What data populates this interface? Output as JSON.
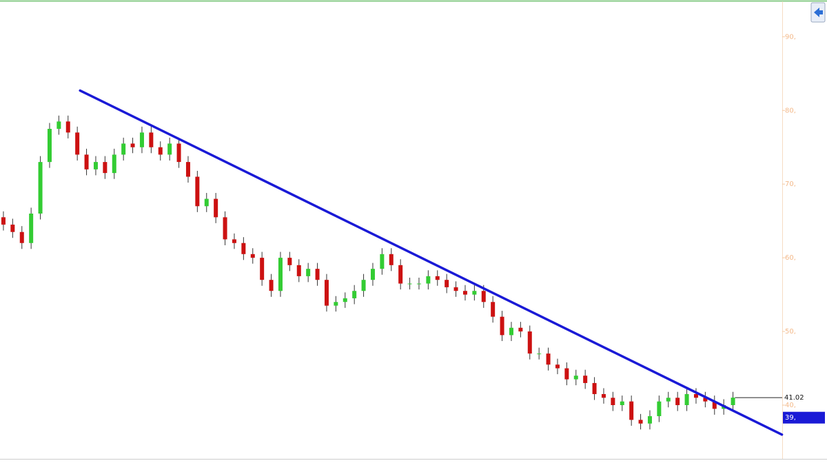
{
  "chart_data": {
    "type": "candlestick",
    "up_color": "#33cc33",
    "down_color": "#cc1111",
    "wick_color": "#333333",
    "open": [
      65.5,
      64.5,
      63.5,
      62,
      66,
      73,
      77.5,
      78.5,
      77,
      74,
      72,
      73,
      71.5,
      74,
      75.5,
      75,
      77,
      75,
      74,
      75.5,
      73,
      71,
      67,
      68,
      65.5,
      62.5,
      62,
      60.5,
      60,
      57,
      55.5,
      60,
      59,
      57.5,
      58.5,
      57,
      53.5,
      54,
      54.5,
      55.5,
      57,
      58.5,
      60.5,
      59,
      56.5,
      56.5,
      56.5,
      57.5,
      57,
      56,
      55.5,
      55,
      55.5,
      54,
      52,
      49.5,
      50.5,
      50,
      47,
      47,
      45.5,
      45,
      43.5,
      44,
      43,
      41.5,
      41,
      40,
      40.5,
      38,
      37.5,
      38.5,
      40.5,
      41,
      40,
      41.5,
      41,
      40.5,
      39.5,
      40
    ],
    "high": [
      66.3,
      65.3,
      64.3,
      66.8,
      73.8,
      78.3,
      79.3,
      79.3,
      77.8,
      74.8,
      73.8,
      73.8,
      74.8,
      76.3,
      76.3,
      77.8,
      77.8,
      75.8,
      76.3,
      76.3,
      73.8,
      71.8,
      68.8,
      68.8,
      66.3,
      63.3,
      62.8,
      61.3,
      60.8,
      57.8,
      60.8,
      60.8,
      59.8,
      59.3,
      59.3,
      57.8,
      54.8,
      55.3,
      56.3,
      57.8,
      59.3,
      61.3,
      61.3,
      59.8,
      57.3,
      57.3,
      58.3,
      58.3,
      57.8,
      56.8,
      56.3,
      56.3,
      56.3,
      54.8,
      52.8,
      51.3,
      51.3,
      50.8,
      47.8,
      47.8,
      46.3,
      45.8,
      44.8,
      44.8,
      43.8,
      42.3,
      41.8,
      41.3,
      41.3,
      38.8,
      39.3,
      41.3,
      41.8,
      41.8,
      42.3,
      42.3,
      41.8,
      41.3,
      40.8,
      41.8
    ],
    "low": [
      63.7,
      62.7,
      61.2,
      61.2,
      65.2,
      72.2,
      76.7,
      76.2,
      73.2,
      71.2,
      71.2,
      70.7,
      70.7,
      73.2,
      74.2,
      74.2,
      74.2,
      73.2,
      73.2,
      72.2,
      70.2,
      66.2,
      66.2,
      64.7,
      61.7,
      61.2,
      59.7,
      59.2,
      56.2,
      54.7,
      54.7,
      58.2,
      56.7,
      56.7,
      56.2,
      52.7,
      52.7,
      53.2,
      53.7,
      54.7,
      56.2,
      57.7,
      58.2,
      55.7,
      55.7,
      55.7,
      55.7,
      56.2,
      55.2,
      54.7,
      54.2,
      54.2,
      53.2,
      51.2,
      48.7,
      48.7,
      49.2,
      46.2,
      46.2,
      44.7,
      44.2,
      42.7,
      42.7,
      42.2,
      40.7,
      40.2,
      39.2,
      39.2,
      37.2,
      36.7,
      36.7,
      37.7,
      39.7,
      39.2,
      39.2,
      40.2,
      39.7,
      38.7,
      38.7,
      39.2
    ],
    "close": [
      64.5,
      63.5,
      62,
      66,
      73,
      77.5,
      78.5,
      77,
      74,
      72,
      73,
      71.5,
      74,
      75.5,
      75,
      77,
      75,
      74,
      75.5,
      73,
      71,
      67,
      68,
      65.5,
      62.5,
      62,
      60.5,
      60,
      57,
      55.5,
      60,
      59,
      57.5,
      58.5,
      57,
      53.5,
      54,
      54.5,
      55.5,
      57,
      58.5,
      60.5,
      59,
      56.5,
      56.5,
      56.5,
      57.5,
      57,
      56,
      55.5,
      55,
      55.5,
      54,
      52,
      49.5,
      50.5,
      50,
      47,
      47,
      45.5,
      45,
      43.5,
      44,
      43,
      41.5,
      41,
      40,
      40.5,
      38,
      37.5,
      38.5,
      40.5,
      41,
      40,
      41.5,
      41,
      40.5,
      39.5,
      40,
      41.02
    ],
    "xlim": [
      -0.37,
      84.33
    ],
    "ylim": [
      32.8,
      94.8
    ],
    "yticks": [
      {
        "value": 40,
        "label": "40,"
      },
      {
        "value": 50,
        "label": "50,"
      },
      {
        "value": 60,
        "label": "60,"
      },
      {
        "value": 70,
        "label": "70,"
      },
      {
        "value": 80,
        "label": "80,"
      },
      {
        "value": 90,
        "label": "90,"
      }
    ],
    "trendline": {
      "color": "#1a1ad6",
      "x": [
        8.3,
        84.3
      ],
      "y": [
        82.7,
        36.0
      ]
    },
    "annotations": [
      {
        "label": "41.02",
        "value": 41.02
      },
      {
        "label": "39,",
        "value": 39
      }
    ]
  }
}
